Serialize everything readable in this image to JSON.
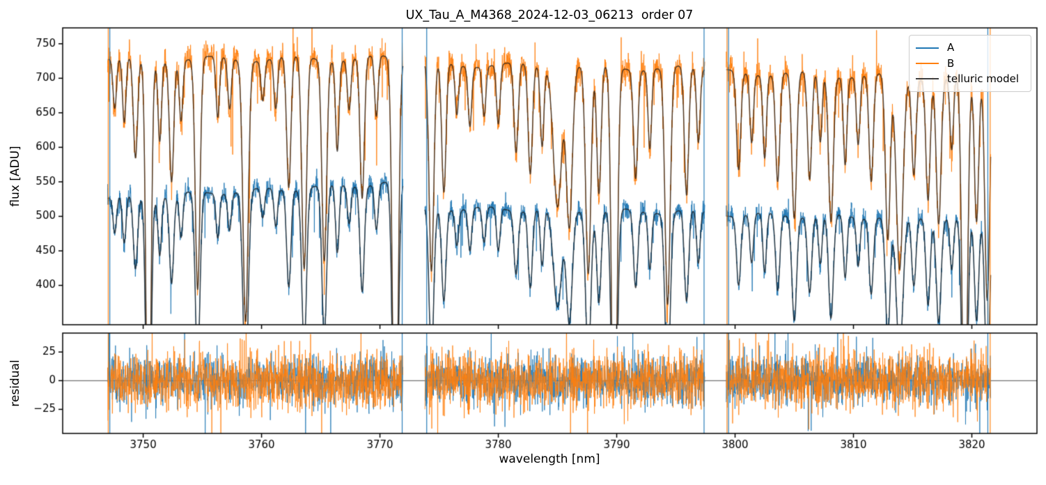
{
  "chart_data": {
    "type": "line",
    "title": "UX_Tau_A_M4368_2024-12-03_06213  order 07",
    "xlabel": "wavelength [nm]",
    "xlim": [
      3743.2,
      3825.5
    ],
    "xticks": [
      3750,
      3760,
      3770,
      3780,
      3790,
      3800,
      3810,
      3820
    ],
    "panels": [
      {
        "name": "flux",
        "ylabel": "flux [ADU]",
        "ylim": [
          343,
          773
        ],
        "yticks": [
          400,
          450,
          500,
          550,
          600,
          650,
          700,
          750
        ]
      },
      {
        "name": "residual",
        "ylabel": "residual",
        "ylim": [
          -46,
          41.5
        ],
        "yticks": [
          -25,
          0,
          25
        ],
        "zeroline": true
      }
    ],
    "legend": {
      "position": "upper right",
      "entries": [
        {
          "label": "A",
          "color": "#1f77b4"
        },
        {
          "label": "B",
          "color": "#ff7f0e"
        },
        {
          "label": "telluric model",
          "color": "#3f3f3f"
        }
      ]
    },
    "series": {
      "A": {
        "color": "#1f77b4",
        "noise_sigma": 7.5,
        "residual_sigma": 10,
        "baselines": [
          [
            526,
            549
          ],
          [
            512,
            506
          ],
          [
            503,
            496
          ]
        ]
      },
      "B": {
        "color": "#ff7f0e",
        "noise_sigma": 12,
        "residual_sigma": 12.5,
        "baselines": [
          [
            727,
            729
          ],
          [
            721,
            713
          ],
          [
            709,
            699
          ]
        ]
      },
      "telluric_model": {
        "color": "#1a1a1a",
        "alpha": 0.75
      }
    },
    "segments": [
      {
        "x_start": 3747.0,
        "x_end": 3771.95
      },
      {
        "x_start": 3773.8,
        "x_end": 3797.45
      },
      {
        "x_start": 3799.25,
        "x_end": 3821.6
      }
    ],
    "telluric_lines": [
      [
        3747.6,
        0.1,
        0.15
      ],
      [
        3748.4,
        0.13,
        0.15
      ],
      [
        3749.35,
        0.2,
        0.18
      ],
      [
        3750.45,
        0.88,
        0.2
      ],
      [
        3751.4,
        0.16,
        0.15
      ],
      [
        3752.4,
        0.24,
        0.18
      ],
      [
        3753.2,
        0.12,
        0.15
      ],
      [
        3754.6,
        0.46,
        0.2
      ],
      [
        3756.3,
        0.12,
        0.15
      ],
      [
        3757.3,
        0.1,
        0.15
      ],
      [
        3758.65,
        0.52,
        0.22
      ],
      [
        3760.1,
        0.08,
        0.15
      ],
      [
        3761.2,
        0.1,
        0.15
      ],
      [
        3762.3,
        0.26,
        0.18
      ],
      [
        3763.6,
        0.42,
        0.2
      ],
      [
        3765.3,
        0.4,
        0.2
      ],
      [
        3766.4,
        0.18,
        0.15
      ],
      [
        3767.4,
        0.1,
        0.15
      ],
      [
        3768.5,
        0.28,
        0.18
      ],
      [
        3769.7,
        0.12,
        0.15
      ],
      [
        3771.3,
        0.92,
        0.22
      ],
      [
        3774.35,
        0.42,
        0.2
      ],
      [
        3775.4,
        0.26,
        0.18
      ],
      [
        3776.5,
        0.1,
        0.15
      ],
      [
        3777.6,
        0.12,
        0.15
      ],
      [
        3778.8,
        0.1,
        0.15
      ],
      [
        3780.0,
        0.12,
        0.15
      ],
      [
        3781.5,
        0.18,
        0.18
      ],
      [
        3782.7,
        0.22,
        0.18
      ],
      [
        3783.7,
        0.16,
        0.15
      ],
      [
        3785.0,
        0.28,
        0.35
      ],
      [
        3786.0,
        0.32,
        0.25
      ],
      [
        3787.6,
        0.42,
        0.22
      ],
      [
        3788.5,
        0.26,
        0.18
      ],
      [
        3789.8,
        0.88,
        0.22
      ],
      [
        3791.6,
        0.22,
        0.18
      ],
      [
        3792.8,
        0.16,
        0.15
      ],
      [
        3794.3,
        0.48,
        0.22
      ],
      [
        3795.9,
        0.26,
        0.18
      ],
      [
        3796.9,
        0.15,
        0.15
      ],
      [
        3800.3,
        0.2,
        0.18
      ],
      [
        3801.4,
        0.14,
        0.15
      ],
      [
        3802.5,
        0.17,
        0.15
      ],
      [
        3803.6,
        0.22,
        0.18
      ],
      [
        3805.0,
        0.3,
        0.2
      ],
      [
        3806.3,
        0.22,
        0.18
      ],
      [
        3807.2,
        0.14,
        0.15
      ],
      [
        3808.1,
        0.3,
        0.2
      ],
      [
        3809.3,
        0.18,
        0.15
      ],
      [
        3810.4,
        0.14,
        0.15
      ],
      [
        3811.5,
        0.22,
        0.18
      ],
      [
        3812.9,
        0.34,
        0.2
      ],
      [
        3813.9,
        0.4,
        0.28
      ],
      [
        3815.1,
        0.2,
        0.18
      ],
      [
        3816.3,
        0.25,
        0.18
      ],
      [
        3817.2,
        0.3,
        0.2
      ],
      [
        3818.3,
        0.15,
        0.15
      ],
      [
        3819.4,
        0.8,
        0.22
      ],
      [
        3820.4,
        0.3,
        0.18
      ],
      [
        3821.3,
        0.46,
        0.2
      ]
    ],
    "edge_spikes": [
      {
        "x": 3747.05,
        "series": "B"
      },
      {
        "x": 3747.18,
        "series": "A"
      },
      {
        "x": 3771.88,
        "series": "A"
      },
      {
        "x": 3773.95,
        "series": "A"
      },
      {
        "x": 3797.38,
        "series": "A"
      },
      {
        "x": 3799.32,
        "series": "B"
      },
      {
        "x": 3799.45,
        "series": "A"
      },
      {
        "x": 3821.35,
        "series": "A"
      },
      {
        "x": 3821.55,
        "series": "B"
      }
    ],
    "sample_step_nm": 0.02,
    "noise_seed": 7
  },
  "style": {
    "background": "#ffffff",
    "axis_color": "#000000",
    "tick_label_color": "#000000",
    "legend_border": "#cccccc",
    "zero_line_color": "#3b3b3b"
  }
}
